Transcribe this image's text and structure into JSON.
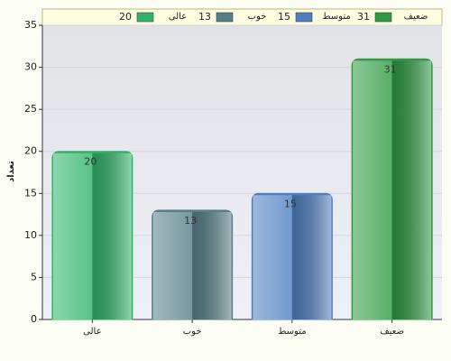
{
  "chart_data": {
    "type": "bar",
    "y_label": "تعداد",
    "categories": [
      "عالی",
      "خوب",
      "متوسط",
      "ضعیف"
    ],
    "values": [
      20,
      13,
      15,
      31
    ],
    "colors": [
      "#2fb36a",
      "#557f86",
      "#4e7fc0",
      "#2e9a42"
    ],
    "ylim": [
      0,
      35
    ],
    "yticks": [
      0,
      5,
      10,
      15,
      20,
      25,
      30,
      35
    ],
    "grid": true
  }
}
